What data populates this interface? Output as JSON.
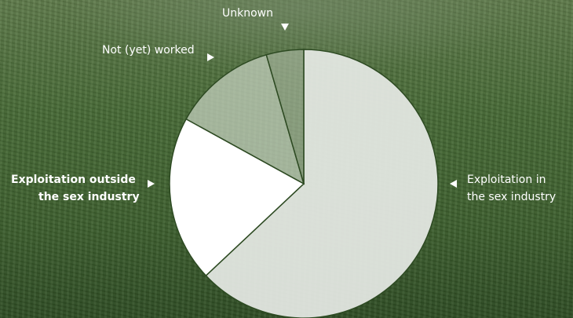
{
  "chart_data": {
    "type": "pie",
    "categories": [
      "Exploitation in the sex industry",
      "Exploitation outside the sex industry",
      "Not (yet) worked",
      "Unknown"
    ],
    "values": [
      63,
      20,
      12.5,
      4.5
    ],
    "labels": {
      "sex_industry": "Exploitation in the sex industry",
      "outside_line1": "Exploitation outside",
      "outside_line2": "the sex industry",
      "not_worked": "Not (yet) worked",
      "unknown": "Unknown",
      "sex_line1": "Exploitation in",
      "sex_line2": "the sex industry"
    },
    "colors": [
      "#e7eae6",
      "#ffffff",
      "#c8d2c2",
      "#aebca6"
    ],
    "opacity": [
      0.92,
      1.0,
      0.72,
      0.62
    ]
  }
}
